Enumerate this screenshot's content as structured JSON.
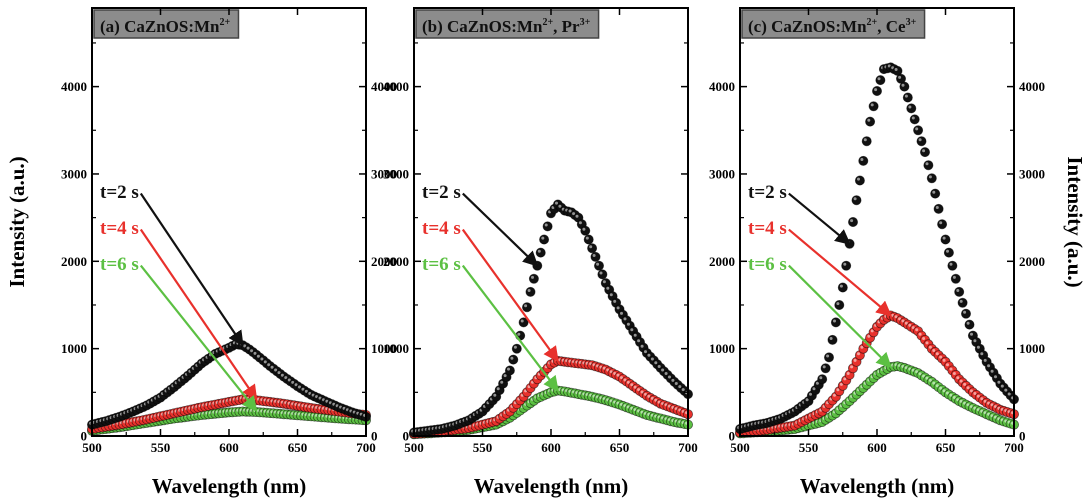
{
  "chart_data": [
    {
      "type": "scatter",
      "title": "(a) CaZnOS:Mn",
      "title_sup": "2+",
      "xlabel": "Wavelength (nm)",
      "ylabel": "Intensity (a.u.)",
      "xlim": [
        500,
        700
      ],
      "ylim": [
        0,
        4900
      ],
      "xticks": [
        500,
        550,
        600,
        650,
        700
      ],
      "yticks": [
        0,
        1000,
        2000,
        3000,
        4000
      ],
      "series": [
        {
          "name": "t=2 s",
          "color": "#111111",
          "x": [
            500,
            510,
            520,
            530,
            540,
            550,
            560,
            570,
            580,
            590,
            600,
            605,
            610,
            615,
            620,
            630,
            640,
            650,
            660,
            670,
            680,
            690,
            700
          ],
          "y": [
            130,
            170,
            220,
            280,
            350,
            440,
            560,
            690,
            830,
            940,
            1010,
            1050,
            1040,
            990,
            930,
            800,
            680,
            570,
            470,
            400,
            330,
            270,
            220
          ]
        },
        {
          "name": "t=4 s",
          "color": "#e8312c",
          "x": [
            500,
            520,
            540,
            560,
            580,
            600,
            610,
            620,
            640,
            660,
            680,
            700
          ],
          "y": [
            80,
            130,
            190,
            260,
            330,
            390,
            420,
            410,
            370,
            320,
            280,
            240
          ]
        },
        {
          "name": "t=6 s",
          "color": "#5cc043",
          "x": [
            500,
            520,
            540,
            560,
            580,
            600,
            610,
            620,
            640,
            660,
            680,
            700
          ],
          "y": [
            60,
            100,
            150,
            200,
            240,
            270,
            280,
            275,
            250,
            225,
            200,
            180
          ]
        }
      ],
      "annotations": [
        {
          "text": "t=2 s",
          "series": 0,
          "target_x": 610,
          "target_y": 1040
        },
        {
          "text": "t=4 s",
          "series": 1,
          "target_x": 620,
          "target_y": 420
        },
        {
          "text": "t=6 s",
          "series": 2,
          "target_x": 620,
          "target_y": 290
        }
      ]
    },
    {
      "type": "scatter",
      "title": "(b) CaZnOS:Mn",
      "title_sup": "2+",
      "title_rest": ", Pr",
      "title_sup2": "3+",
      "xlabel": "Wavelength (nm)",
      "ylabel": "",
      "xlim": [
        500,
        700
      ],
      "ylim": [
        0,
        4900
      ],
      "xticks": [
        500,
        550,
        600,
        650,
        700
      ],
      "yticks": [
        0,
        1000,
        2000,
        3000,
        4000
      ],
      "series": [
        {
          "name": "t=2 s",
          "color": "#111111",
          "x": [
            500,
            510,
            520,
            530,
            540,
            550,
            560,
            570,
            575,
            580,
            585,
            590,
            595,
            600,
            605,
            610,
            615,
            620,
            625,
            630,
            635,
            640,
            645,
            650,
            660,
            670,
            680,
            690,
            700
          ],
          "y": [
            40,
            60,
            80,
            120,
            180,
            280,
            450,
            750,
            1000,
            1300,
            1650,
            1950,
            2250,
            2550,
            2650,
            2580,
            2560,
            2500,
            2350,
            2150,
            1950,
            1750,
            1600,
            1450,
            1200,
            950,
            780,
            620,
            480
          ]
        },
        {
          "name": "t=4 s",
          "color": "#e8312c",
          "x": [
            500,
            520,
            540,
            560,
            570,
            580,
            590,
            600,
            605,
            610,
            620,
            630,
            640,
            650,
            660,
            670,
            680,
            690,
            700
          ],
          "y": [
            25,
            50,
            90,
            170,
            280,
            450,
            650,
            820,
            860,
            850,
            830,
            810,
            760,
            680,
            570,
            460,
            370,
            310,
            250
          ]
        },
        {
          "name": "t=6 s",
          "color": "#5cc043",
          "x": [
            500,
            520,
            540,
            560,
            570,
            580,
            590,
            600,
            605,
            610,
            620,
            630,
            640,
            650,
            660,
            670,
            680,
            690,
            700
          ],
          "y": [
            20,
            40,
            70,
            130,
            210,
            320,
            430,
            500,
            520,
            510,
            480,
            450,
            410,
            360,
            300,
            240,
            200,
            160,
            130
          ]
        }
      ],
      "annotations": [
        {
          "text": "t=2 s",
          "series": 0,
          "target_x": 590,
          "target_y": 1950
        },
        {
          "text": "t=4 s",
          "series": 1,
          "target_x": 605,
          "target_y": 860
        },
        {
          "text": "t=6 s",
          "series": 2,
          "target_x": 605,
          "target_y": 520
        }
      ]
    },
    {
      "type": "scatter",
      "title": "(c) CaZnOS:Mn",
      "title_sup": "2+",
      "title_rest": ", Ce",
      "title_sup2": "3+",
      "xlabel": "Wavelength (nm)",
      "ylabel": "Intensity (a.u.)",
      "xlim": [
        500,
        700
      ],
      "ylim": [
        0,
        4900
      ],
      "xticks": [
        500,
        550,
        600,
        650,
        700
      ],
      "yticks": [
        0,
        1000,
        2000,
        3000,
        4000
      ],
      "series": [
        {
          "name": "t=2 s",
          "color": "#111111",
          "x": [
            500,
            510,
            520,
            530,
            540,
            550,
            560,
            565,
            570,
            575,
            580,
            585,
            590,
            595,
            600,
            605,
            610,
            615,
            620,
            625,
            630,
            635,
            640,
            645,
            650,
            660,
            670,
            680,
            690,
            700
          ],
          "y": [
            80,
            120,
            150,
            200,
            280,
            400,
            650,
            900,
            1300,
            1700,
            2200,
            2700,
            3150,
            3600,
            3950,
            4200,
            4220,
            4180,
            4000,
            3750,
            3500,
            3250,
            2950,
            2600,
            2250,
            1650,
            1150,
            850,
            600,
            420
          ]
        },
        {
          "name": "t=4 s",
          "color": "#e8312c",
          "x": [
            500,
            520,
            540,
            560,
            570,
            580,
            590,
            600,
            605,
            610,
            615,
            620,
            630,
            640,
            650,
            660,
            670,
            680,
            690,
            700
          ],
          "y": [
            40,
            70,
            120,
            280,
            450,
            700,
            1000,
            1250,
            1330,
            1380,
            1350,
            1300,
            1200,
            1000,
            850,
            650,
            500,
            380,
            300,
            250
          ]
        },
        {
          "name": "t=6 s",
          "color": "#5cc043",
          "x": [
            500,
            520,
            540,
            560,
            570,
            580,
            590,
            600,
            610,
            615,
            620,
            630,
            640,
            650,
            660,
            670,
            680,
            690,
            700
          ],
          "y": [
            30,
            50,
            80,
            160,
            260,
            400,
            550,
            700,
            790,
            800,
            780,
            720,
            620,
            500,
            400,
            320,
            250,
            180,
            130
          ]
        }
      ],
      "annotations": [
        {
          "text": "t=2 s",
          "series": 0,
          "target_x": 580,
          "target_y": 2200
        },
        {
          "text": "t=4 s",
          "series": 1,
          "target_x": 610,
          "target_y": 1380
        },
        {
          "text": "t=6 s",
          "series": 2,
          "target_x": 610,
          "target_y": 790
        }
      ]
    }
  ]
}
